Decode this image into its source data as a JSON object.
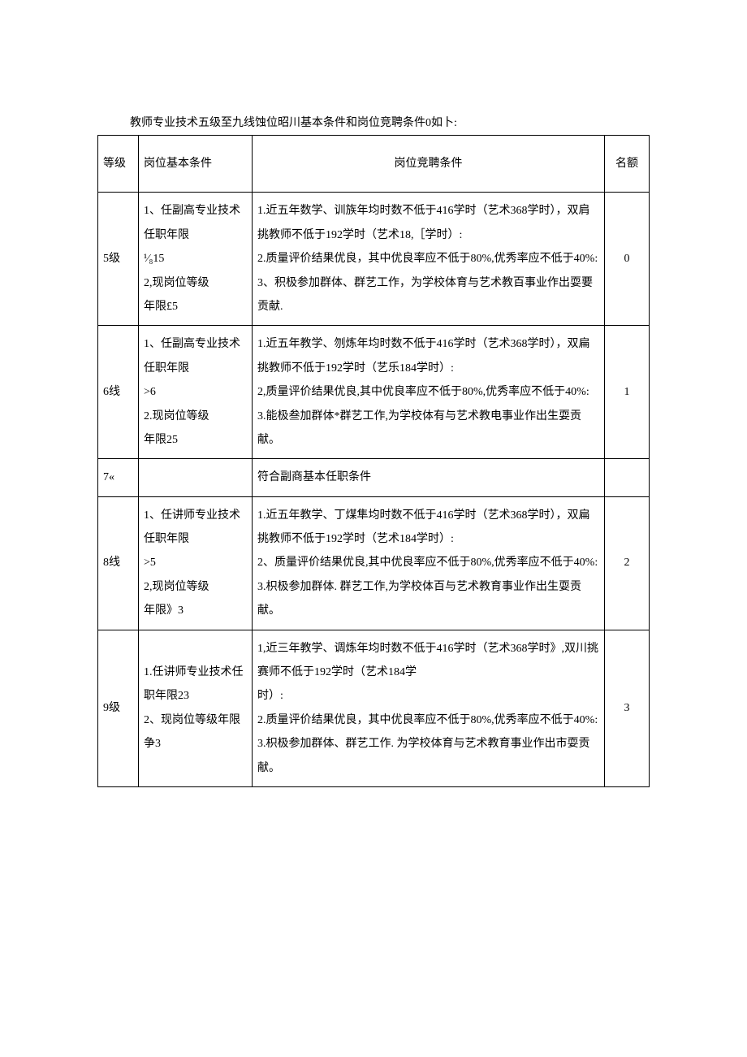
{
  "caption": "教师专业技术五级至九线蚀位昭川基本条件和岗位竞聘条件0如卜:",
  "headers": {
    "level": "等级",
    "basic": "岗位基本条件",
    "compete": "岗位竞聘条件",
    "quota": "名额"
  },
  "rows": [
    {
      "level": "5级",
      "basic": "1、任副高专业技术任职年限\n¹⁄₈15\n2,现岗位等级\n年限£5",
      "compete": "1.近五年数学、训族年均时数不低于416学时（艺术368学时），双肩挑教师不低于192学时（艺术18,［学时）:\n2.质量评价结果优良，其中优良率应不低于80%,优秀率应不低于40%:\n3、积极参加群体、群艺工作，为学校体育与艺术教百事业作出耍要贡献.",
      "quota": "0"
    },
    {
      "level": "6线",
      "basic": "1、任副高专业技术任职年限\n>6\n2.现岗位等级\n年限25",
      "compete": "1.近五年教学、刎炼年均时数不低于416学时（艺术368学时），双扁挑教师不低于192学时（艺乐184学时）:\n2,质量评价结果优良,其中优良率应不低于80%,优秀率应不低于40%:\n3.能极叁加群体*群艺工作,为学校体有与艺术教电事业作出生耍贡献。",
      "quota": "1"
    },
    {
      "level": "7«",
      "basic": "",
      "compete": "符合副商基本任职条件",
      "quota": ""
    },
    {
      "level": "8线",
      "basic": "1、任讲师专业技术任职年限\n>5\n2,现岗位等级\n年限》3",
      "compete": "1.近五年教学、丁煤隼均时数不低于416学时（艺术368学时），双扁挑教师不低于192学时（艺术184学时）:\n2、质量评价结果优良,其中优良率应不低于80%,优秀率应不低于40%:\n3.枳极参加群体. 群艺工作,为学校体百与艺术教育事业作出生耍贡献。",
      "quota": "2"
    },
    {
      "level": "9级",
      "basic": "1.任讲师专业技术任职年限23\n2、现岗位等级年限争3",
      "compete": "1,近三年教学、调炼年均时数不低于416学时（艺术368学时》,双川挑赛师不低于192学时（艺术184学\n时）:\n2.质量评价结果优良，其中优良率应不低于80%,优秀率应不低于40%:\n3.枳极参加群体、群艺工作. 为学校体育与艺术教育事业作出市耍贡献。",
      "quota": "3"
    }
  ]
}
